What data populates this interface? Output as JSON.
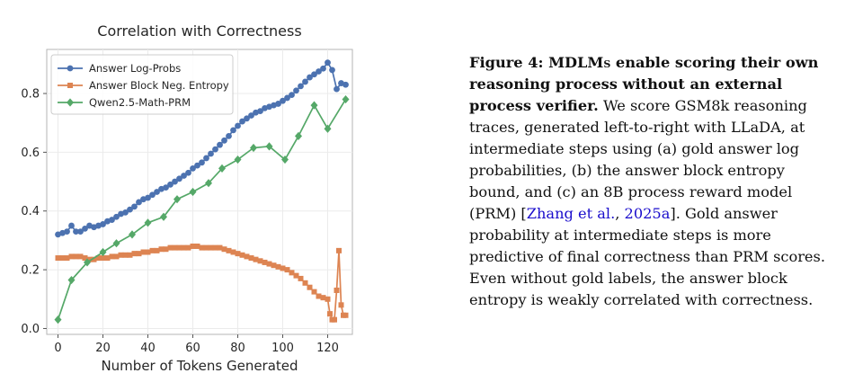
{
  "chart_data": {
    "type": "line",
    "title": "Correlation with Correctness",
    "xlabel": "Number of Tokens Generated",
    "ylabel": "",
    "xlim": [
      -5,
      131
    ],
    "ylim": [
      -0.02,
      0.95
    ],
    "xticks": [
      0,
      20,
      40,
      60,
      80,
      100,
      120
    ],
    "yticks": [
      0.0,
      0.2,
      0.4,
      0.6,
      0.8
    ],
    "xtick_labels": [
      "0",
      "20",
      "40",
      "60",
      "80",
      "100",
      "120"
    ],
    "ytick_labels": [
      "0.0",
      "0.2",
      "0.4",
      "0.6",
      "0.8"
    ],
    "grid": true,
    "legend_position": "top-left",
    "series": [
      {
        "name": "Answer Log-Probs",
        "color": "#4c72b0",
        "marker": "circle",
        "x": [
          0,
          2,
          4,
          6,
          8,
          10,
          12,
          14,
          16,
          18,
          20,
          22,
          24,
          26,
          28,
          30,
          32,
          34,
          36,
          38,
          40,
          42,
          44,
          46,
          48,
          50,
          52,
          54,
          56,
          58,
          60,
          62,
          64,
          66,
          68,
          70,
          72,
          74,
          76,
          78,
          80,
          82,
          84,
          86,
          88,
          90,
          92,
          94,
          96,
          98,
          100,
          102,
          104,
          106,
          108,
          110,
          112,
          114,
          116,
          118,
          120,
          122,
          124,
          126,
          128
        ],
        "y": [
          0.32,
          0.325,
          0.33,
          0.35,
          0.33,
          0.33,
          0.34,
          0.35,
          0.345,
          0.35,
          0.355,
          0.365,
          0.37,
          0.38,
          0.39,
          0.395,
          0.405,
          0.415,
          0.43,
          0.44,
          0.445,
          0.455,
          0.465,
          0.475,
          0.48,
          0.49,
          0.5,
          0.51,
          0.52,
          0.53,
          0.545,
          0.555,
          0.565,
          0.58,
          0.595,
          0.61,
          0.625,
          0.64,
          0.655,
          0.675,
          0.69,
          0.705,
          0.715,
          0.725,
          0.735,
          0.74,
          0.75,
          0.755,
          0.76,
          0.765,
          0.775,
          0.785,
          0.795,
          0.81,
          0.825,
          0.84,
          0.855,
          0.865,
          0.875,
          0.885,
          0.905,
          0.88,
          0.815,
          0.835,
          0.83
        ]
      },
      {
        "name": "Answer Block Neg. Entropy",
        "color": "#dd8452",
        "marker": "square",
        "x": [
          0,
          2,
          4,
          6,
          8,
          10,
          12,
          14,
          16,
          18,
          20,
          22,
          24,
          26,
          28,
          30,
          32,
          34,
          36,
          38,
          40,
          42,
          44,
          46,
          48,
          50,
          52,
          54,
          56,
          58,
          60,
          62,
          64,
          66,
          68,
          70,
          72,
          74,
          76,
          78,
          80,
          82,
          84,
          86,
          88,
          90,
          92,
          94,
          96,
          98,
          100,
          102,
          104,
          106,
          108,
          110,
          112,
          114,
          116,
          118,
          120,
          121,
          122,
          123,
          124,
          125,
          126,
          127,
          128
        ],
        "y": [
          0.24,
          0.24,
          0.24,
          0.245,
          0.245,
          0.245,
          0.24,
          0.235,
          0.235,
          0.24,
          0.24,
          0.24,
          0.245,
          0.245,
          0.25,
          0.25,
          0.25,
          0.255,
          0.255,
          0.26,
          0.26,
          0.265,
          0.265,
          0.27,
          0.27,
          0.275,
          0.275,
          0.275,
          0.275,
          0.275,
          0.28,
          0.28,
          0.275,
          0.275,
          0.275,
          0.275,
          0.275,
          0.27,
          0.265,
          0.26,
          0.255,
          0.25,
          0.245,
          0.24,
          0.235,
          0.23,
          0.225,
          0.22,
          0.215,
          0.21,
          0.205,
          0.2,
          0.19,
          0.18,
          0.17,
          0.155,
          0.14,
          0.125,
          0.11,
          0.105,
          0.1,
          0.05,
          0.03,
          0.03,
          0.13,
          0.265,
          0.08,
          0.045,
          0.045
        ]
      },
      {
        "name": "Qwen2.5-Math-PRM",
        "color": "#55a868",
        "marker": "diamond",
        "x": [
          0,
          6,
          13,
          20,
          26,
          33,
          40,
          47,
          53,
          60,
          67,
          73,
          80,
          87,
          94,
          101,
          107,
          114,
          120,
          128
        ],
        "y": [
          0.03,
          0.165,
          0.225,
          0.26,
          0.29,
          0.32,
          0.36,
          0.38,
          0.44,
          0.465,
          0.495,
          0.545,
          0.575,
          0.615,
          0.62,
          0.575,
          0.655,
          0.76,
          0.68,
          0.78
        ]
      }
    ]
  },
  "caption": {
    "bold_prefix": "Figure 4: ",
    "bold_sc": "MDLMs",
    "bold_rest": " enable scoring their own reasoning process without an external process verifier.",
    "text1": " We score ",
    "text1_sc": "GSM",
    "text2": "8k reasoning traces, generated left-to-right with LLaDA, at intermediate steps using (a) gold answer log probabilities, (b) the answer block entropy bound, and (c) an 8B process reward model (PRM) [",
    "cite1": "Zhang et al.",
    "cite_sep": ", ",
    "cite2": "2025a",
    "text3": "]. Gold answer probability at intermediate steps is more predictive of final correctness than PRM scores. Even without gold labels, the answer block entropy is weakly correlated with correctness."
  }
}
